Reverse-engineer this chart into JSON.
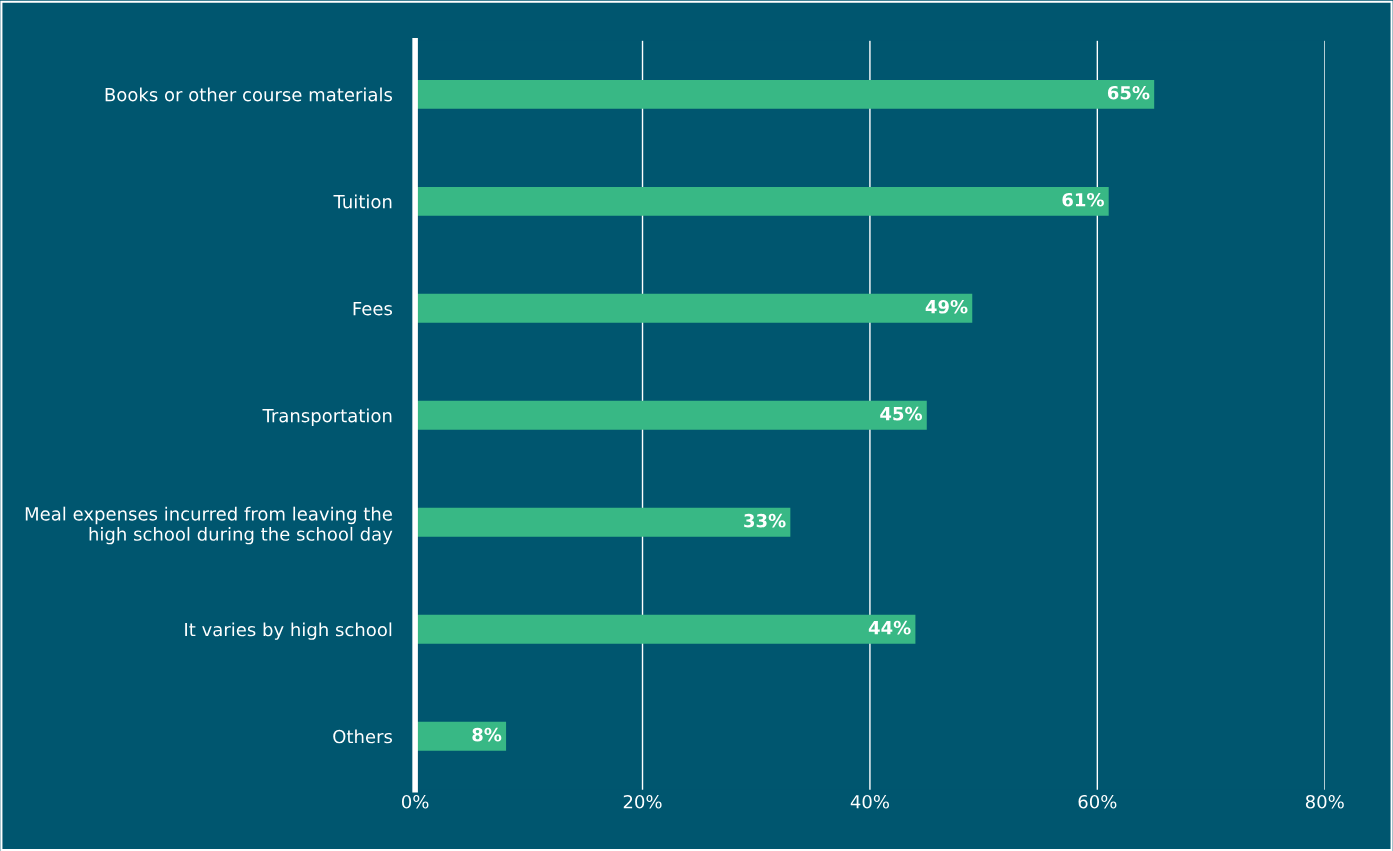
{
  "chart_data": {
    "type": "bar",
    "orientation": "horizontal",
    "categories": [
      "Books or other course materials",
      "Tuition",
      "Fees",
      "Transportation",
      "Meal expenses incurred from leaving the\nhigh school during the school day",
      "It varies by high school",
      "Others"
    ],
    "values": [
      65,
      61,
      49,
      45,
      33,
      44,
      8
    ],
    "value_labels": [
      "65%",
      "61%",
      "49%",
      "45%",
      "33%",
      "44%",
      "8%"
    ],
    "color": "#38b885",
    "xlim": [
      0,
      80
    ],
    "xticks": [
      {
        "value": 0,
        "label": "0%"
      },
      {
        "value": 20,
        "label": "20%"
      },
      {
        "value": 40,
        "label": "40%"
      },
      {
        "value": 60,
        "label": "60%"
      },
      {
        "value": 80,
        "label": "80%"
      }
    ],
    "grid": "x"
  }
}
